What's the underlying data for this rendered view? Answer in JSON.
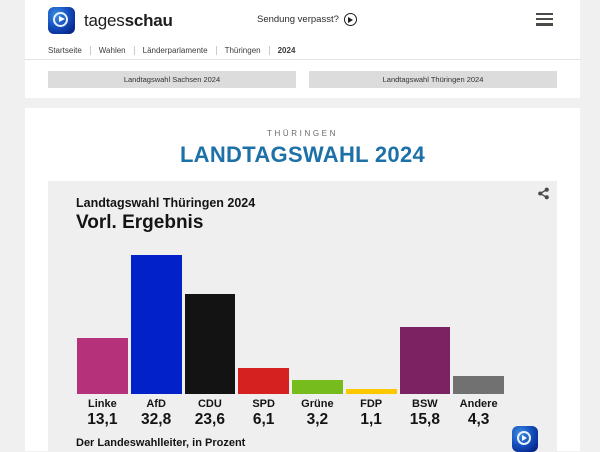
{
  "header": {
    "brand_regular": "tages",
    "brand_bold": "schau",
    "missed_broadcast_label": "Sendung verpasst?",
    "breadcrumb": [
      "Startseite",
      "Wahlen",
      "Länderparlamente",
      "Thüringen",
      "2024"
    ]
  },
  "nav_buttons": {
    "sachsen_label": "Landtagswahl Sachsen 2024",
    "thueringen_label": "Landtagswahl Thüringen 2024"
  },
  "page": {
    "region_label": "THÜRINGEN",
    "title": "LANDTAGSWAHL 2024"
  },
  "chart_data": {
    "type": "bar",
    "title": "Landtagswahl Thüringen 2024",
    "subtitle": "Vorl. Ergebnis",
    "source": "Der Landeswahlleiter, in Prozent",
    "unit": "Prozent",
    "categories": [
      "Linke",
      "AfD",
      "CDU",
      "SPD",
      "Grüne",
      "FDP",
      "BSW",
      "Andere"
    ],
    "values": [
      13.1,
      32.8,
      23.6,
      6.1,
      3.2,
      1.1,
      15.8,
      4.3
    ],
    "value_labels": [
      "13,1",
      "32,8",
      "23,6",
      "6,1",
      "3,2",
      "1,1",
      "15,8",
      "4,3"
    ],
    "colors": [
      "#b5317a",
      "#0221c8",
      "#131313",
      "#d52221",
      "#76bc1d",
      "#fcc800",
      "#7c2161",
      "#717171"
    ],
    "ylim": [
      0,
      35
    ],
    "grid": false,
    "legend": false
  },
  "colors": {
    "accent_blue": "#1d71a8",
    "page_bg": "#f0f0f0",
    "chart_panel_bg": "#efefef",
    "button_bg": "#dcdcdc"
  }
}
